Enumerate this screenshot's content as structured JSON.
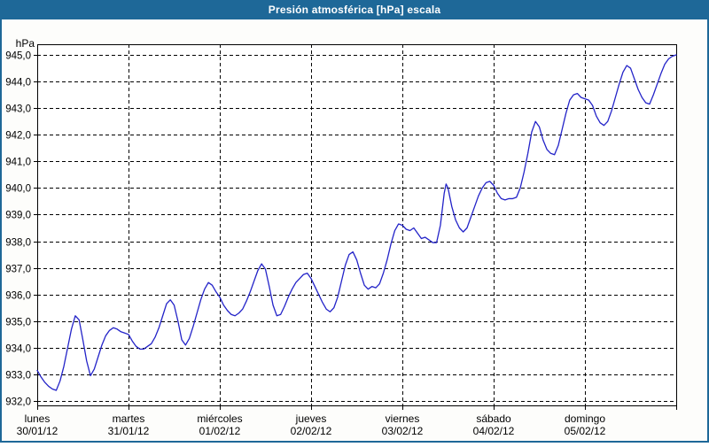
{
  "window": {
    "title": "Presión atmosférica [hPa] escala"
  },
  "colors": {
    "frame": "#1E6898",
    "title_text": "#FFFFFF",
    "line": "#2323C8",
    "grid": "#000000",
    "text": "#000000",
    "plot_background": "#FFFFFF",
    "window_background": "#FDFDFB"
  },
  "chart_data": {
    "type": "line",
    "title": "Presión atmosférica [hPa] escala",
    "unit_label": "hPa",
    "xlabel": "",
    "ylabel": "hPa",
    "ylim": [
      931.75,
      945.4
    ],
    "x_range_hours": [
      0,
      168
    ],
    "grid": true,
    "legend": "none",
    "yticks": [
      945,
      944,
      943,
      942,
      941,
      940,
      939,
      938,
      937,
      936,
      935,
      934,
      933,
      932
    ],
    "ytick_labels": [
      "945,0",
      "944,0",
      "943,0",
      "942,0",
      "941,0",
      "940,0",
      "939,0",
      "938,0",
      "937,0",
      "936,0",
      "935,0",
      "934,0",
      "933,0",
      "932,0"
    ],
    "days": [
      {
        "name": "lunes",
        "date": "30/01/12"
      },
      {
        "name": "martes",
        "date": "31/01/12"
      },
      {
        "name": "miércoles",
        "date": "01/02/12"
      },
      {
        "name": "jueves",
        "date": "02/02/12"
      },
      {
        "name": "viernes",
        "date": "03/02/12"
      },
      {
        "name": "sábado",
        "date": "04/02/12"
      },
      {
        "name": "domingo",
        "date": "05/02/12"
      }
    ],
    "series": [
      {
        "name": "Presión atmosférica [hPa]",
        "points": [
          [
            0,
            933.15
          ],
          [
            1,
            932.9
          ],
          [
            2,
            932.7
          ],
          [
            3,
            932.55
          ],
          [
            4,
            932.45
          ],
          [
            5,
            932.4
          ],
          [
            6,
            932.75
          ],
          [
            7,
            933.3
          ],
          [
            8,
            934.0
          ],
          [
            9,
            934.7
          ],
          [
            10,
            935.2
          ],
          [
            11,
            935.05
          ],
          [
            12,
            934.3
          ],
          [
            13,
            933.5
          ],
          [
            14,
            932.95
          ],
          [
            15,
            933.2
          ],
          [
            16,
            933.65
          ],
          [
            17,
            934.1
          ],
          [
            18,
            934.45
          ],
          [
            19,
            934.65
          ],
          [
            20,
            934.75
          ],
          [
            21,
            934.7
          ],
          [
            22,
            934.6
          ],
          [
            23,
            934.55
          ],
          [
            24,
            934.5
          ],
          [
            25,
            934.25
          ],
          [
            26,
            934.05
          ],
          [
            27,
            933.95
          ],
          [
            28,
            933.95
          ],
          [
            29,
            934.05
          ],
          [
            30,
            934.15
          ],
          [
            31,
            934.4
          ],
          [
            32,
            934.75
          ],
          [
            33,
            935.2
          ],
          [
            34,
            935.65
          ],
          [
            35,
            935.8
          ],
          [
            36,
            935.6
          ],
          [
            37,
            935.0
          ],
          [
            38,
            934.3
          ],
          [
            39,
            934.1
          ],
          [
            40,
            934.35
          ],
          [
            41,
            934.8
          ],
          [
            42,
            935.3
          ],
          [
            43,
            935.8
          ],
          [
            44,
            936.2
          ],
          [
            45,
            936.45
          ],
          [
            46,
            936.35
          ],
          [
            47,
            936.1
          ],
          [
            48,
            935.9
          ],
          [
            49,
            935.6
          ],
          [
            50,
            935.4
          ],
          [
            51,
            935.25
          ],
          [
            52,
            935.2
          ],
          [
            53,
            935.3
          ],
          [
            54,
            935.45
          ],
          [
            55,
            935.75
          ],
          [
            56,
            936.1
          ],
          [
            57,
            936.5
          ],
          [
            58,
            936.9
          ],
          [
            59,
            937.15
          ],
          [
            60,
            936.95
          ],
          [
            61,
            936.3
          ],
          [
            62,
            935.6
          ],
          [
            63,
            935.2
          ],
          [
            64,
            935.25
          ],
          [
            65,
            935.55
          ],
          [
            66,
            935.9
          ],
          [
            67,
            936.2
          ],
          [
            68,
            936.45
          ],
          [
            69,
            936.6
          ],
          [
            70,
            936.75
          ],
          [
            71,
            936.8
          ],
          [
            72,
            936.6
          ],
          [
            73,
            936.3
          ],
          [
            74,
            936.0
          ],
          [
            75,
            935.7
          ],
          [
            76,
            935.45
          ],
          [
            77,
            935.35
          ],
          [
            78,
            935.5
          ],
          [
            79,
            935.9
          ],
          [
            80,
            936.5
          ],
          [
            81,
            937.1
          ],
          [
            82,
            937.5
          ],
          [
            83,
            937.6
          ],
          [
            84,
            937.3
          ],
          [
            85,
            936.8
          ],
          [
            86,
            936.35
          ],
          [
            87,
            936.2
          ],
          [
            88,
            936.3
          ],
          [
            89,
            936.25
          ],
          [
            90,
            936.4
          ],
          [
            91,
            936.8
          ],
          [
            92,
            937.3
          ],
          [
            93,
            937.9
          ],
          [
            94,
            938.4
          ],
          [
            95,
            938.65
          ],
          [
            96,
            938.6
          ],
          [
            97,
            938.45
          ],
          [
            98,
            938.4
          ],
          [
            99,
            938.5
          ],
          [
            100,
            938.3
          ],
          [
            101,
            938.1
          ],
          [
            102,
            938.15
          ],
          [
            103,
            938.05
          ],
          [
            104,
            937.95
          ],
          [
            105,
            937.95
          ],
          [
            106,
            938.6
          ],
          [
            107,
            939.8
          ],
          [
            107.5,
            940.15
          ],
          [
            108,
            940.0
          ],
          [
            109,
            939.3
          ],
          [
            110,
            938.8
          ],
          [
            111,
            938.5
          ],
          [
            112,
            938.35
          ],
          [
            113,
            938.5
          ],
          [
            114,
            938.9
          ],
          [
            115,
            939.3
          ],
          [
            116,
            939.7
          ],
          [
            117,
            940.0
          ],
          [
            118,
            940.2
          ],
          [
            119,
            940.25
          ],
          [
            120,
            940.1
          ],
          [
            121,
            939.8
          ],
          [
            122,
            939.6
          ],
          [
            123,
            939.55
          ],
          [
            124,
            939.6
          ],
          [
            125,
            939.6
          ],
          [
            126,
            939.65
          ],
          [
            127,
            940.0
          ],
          [
            128,
            940.6
          ],
          [
            129,
            941.3
          ],
          [
            130,
            942.1
          ],
          [
            131,
            942.5
          ],
          [
            132,
            942.3
          ],
          [
            133,
            941.8
          ],
          [
            134,
            941.45
          ],
          [
            135,
            941.3
          ],
          [
            136,
            941.25
          ],
          [
            137,
            941.6
          ],
          [
            138,
            942.2
          ],
          [
            139,
            942.8
          ],
          [
            140,
            943.3
          ],
          [
            141,
            943.5
          ],
          [
            142,
            943.55
          ],
          [
            143,
            943.4
          ],
          [
            144,
            943.35
          ],
          [
            145,
            943.3
          ],
          [
            146,
            943.1
          ],
          [
            147,
            942.7
          ],
          [
            148,
            942.45
          ],
          [
            149,
            942.35
          ],
          [
            150,
            942.5
          ],
          [
            151,
            942.9
          ],
          [
            152,
            943.4
          ],
          [
            153,
            943.9
          ],
          [
            154,
            944.35
          ],
          [
            155,
            944.6
          ],
          [
            156,
            944.5
          ],
          [
            157,
            944.1
          ],
          [
            158,
            943.7
          ],
          [
            159,
            943.4
          ],
          [
            160,
            943.2
          ],
          [
            161,
            943.15
          ],
          [
            162,
            943.5
          ],
          [
            163,
            943.9
          ],
          [
            164,
            944.3
          ],
          [
            165,
            944.65
          ],
          [
            166,
            944.85
          ],
          [
            167,
            944.95
          ],
          [
            168,
            945.0
          ]
        ]
      }
    ]
  }
}
